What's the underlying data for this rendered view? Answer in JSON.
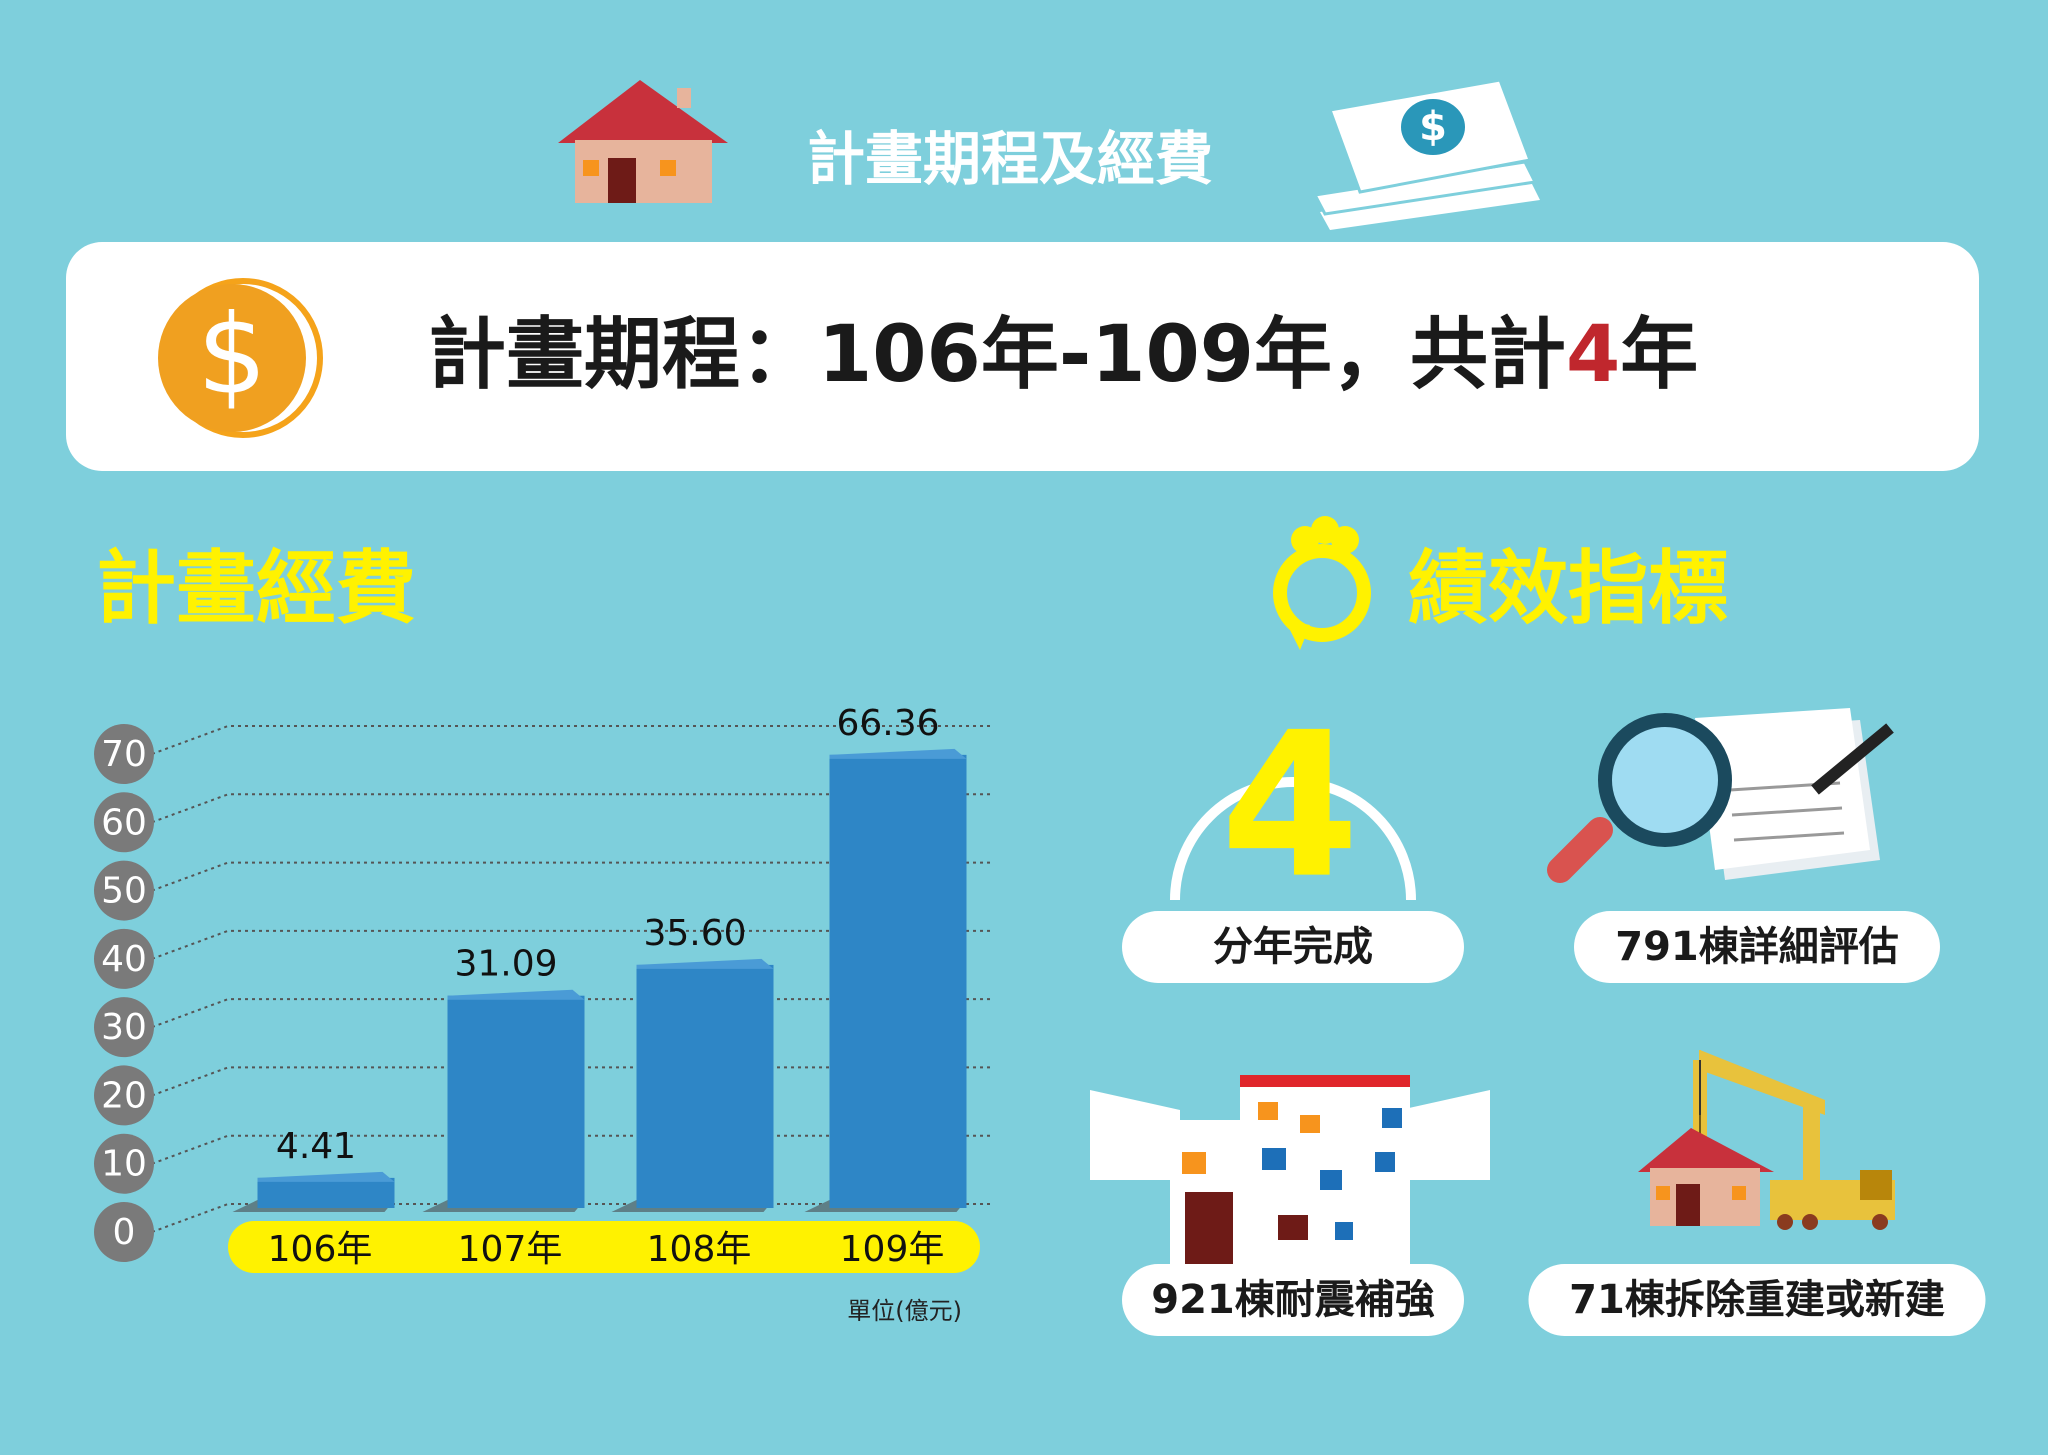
{
  "header": {
    "title": "計畫期程及經費"
  },
  "schedule": {
    "text": "計畫期程：106年-109年，共計",
    "highlight": "4",
    "suffix": "年"
  },
  "chart_data": {
    "type": "bar",
    "title": "計畫經費",
    "categories": [
      "106年",
      "107年",
      "108年",
      "109年"
    ],
    "values": [
      4.41,
      31.09,
      35.6,
      66.36
    ],
    "value_labels": [
      "4.41",
      "31.09",
      "35.60",
      "66.36"
    ],
    "color": "#2e86c6",
    "ylim": [
      0,
      70
    ],
    "yticks": [
      0,
      10,
      20,
      30,
      40,
      50,
      60,
      70
    ],
    "grid": true,
    "unit_note": "單位(億元)"
  },
  "indicators": {
    "title": "績效指標",
    "items": [
      {
        "number": "4",
        "label": "分年完成"
      },
      {
        "label": "791棟詳細評估"
      },
      {
        "label": "921棟耐震補強"
      },
      {
        "label": "71棟拆除重建或新建"
      }
    ]
  }
}
